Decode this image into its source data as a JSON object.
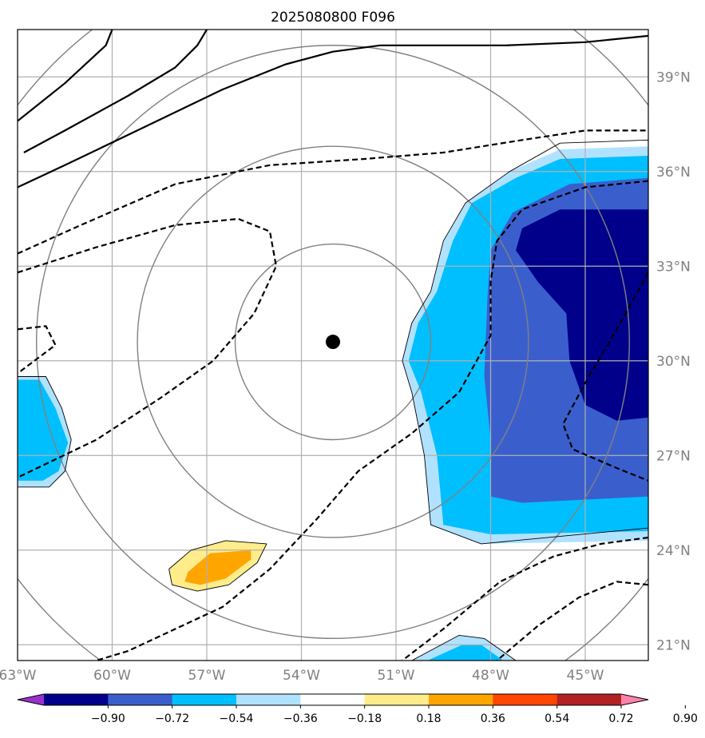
{
  "chart_data": {
    "type": "map",
    "title": "2025080800 F096",
    "map": {
      "lon_range": [
        -63.0,
        -43.0
      ],
      "lat_range": [
        20.5,
        40.5
      ],
      "lon_ticks": [
        -63,
        -60,
        -57,
        -54,
        -51,
        -48,
        -45
      ],
      "lon_tick_labels": [
        "63°W",
        "60°W",
        "57°W",
        "54°W",
        "51°W",
        "48°W",
        "45°W"
      ],
      "lat_ticks": [
        21,
        24,
        27,
        30,
        33,
        36,
        39
      ],
      "lat_tick_labels": [
        "21°N",
        "24°N",
        "27°N",
        "30°N",
        "33°N",
        "36°N",
        "39°N"
      ],
      "grid": true,
      "center": {
        "lon": -53.0,
        "lat": 30.6
      },
      "range_rings_deg": [
        3.1,
        6.2,
        9.4,
        12.5
      ],
      "colors": {
        "grid": "#b0b0b0",
        "rings": "#808080",
        "center_marker": "#000000",
        "contour": "#000000"
      }
    },
    "colorbar": {
      "levels": [
        -0.9,
        -0.72,
        -0.54,
        -0.36,
        -0.18,
        0.18,
        0.36,
        0.54,
        0.72,
        0.9
      ],
      "tick_labels": [
        "−0.90",
        "−0.72",
        "−0.54",
        "−0.36",
        "−0.18",
        "0.18",
        "0.36",
        "0.54",
        "0.72",
        "0.90"
      ],
      "colors": [
        "#9932cc",
        "#00008b",
        "#3a5fcd",
        "#00bfff",
        "#b0e2ff",
        "#ffffff",
        "#ffec8b",
        "#ffa500",
        "#ff4500",
        "#b22222",
        "#ff82ab"
      ],
      "extend": "both"
    },
    "shaded_regions": [
      {
        "name": "east-blob",
        "levels": [
          {
            "value": -0.18,
            "color": "#b0e2ff",
            "points": [
              [
                -45.8,
                36.7
              ],
              [
                -43,
                36.8
              ],
              [
                -43,
                24.3
              ],
              [
                -48.3,
                24.2
              ],
              [
                -49.9,
                24.8
              ],
              [
                -50.1,
                27.0
              ],
              [
                -50.5,
                29.0
              ],
              [
                -50.8,
                30.0
              ],
              [
                -50.5,
                31.2
              ],
              [
                -49.9,
                32.2
              ],
              [
                -49.5,
                33.8
              ],
              [
                -48.8,
                35.0
              ],
              [
                -47.4,
                36.0
              ]
            ]
          },
          {
            "value": -0.36,
            "color": "#00bfff",
            "points": [
              [
                -45.8,
                36.4
              ],
              [
                -43,
                36.5
              ],
              [
                -43,
                24.6
              ],
              [
                -48.0,
                24.5
              ],
              [
                -49.5,
                24.8
              ],
              [
                -49.7,
                27.0
              ],
              [
                -50.2,
                29.0
              ],
              [
                -50.6,
                30.0
              ],
              [
                -50.3,
                31.2
              ],
              [
                -49.7,
                32.2
              ],
              [
                -49.2,
                33.8
              ],
              [
                -48.6,
                35.0
              ],
              [
                -47.2,
                35.8
              ]
            ]
          },
          {
            "value": -0.54,
            "color": "#3a5fcd",
            "points": [
              [
                -45.5,
                35.6
              ],
              [
                -43,
                35.8
              ],
              [
                -43,
                25.7
              ],
              [
                -47.0,
                25.5
              ],
              [
                -48.0,
                25.7
              ],
              [
                -48.0,
                27.5
              ],
              [
                -48.2,
                29.5
              ],
              [
                -48.1,
                32.0
              ],
              [
                -48.0,
                33.5
              ],
              [
                -47.3,
                34.7
              ]
            ]
          },
          {
            "value": -0.72,
            "color": "#00008b",
            "points": [
              [
                -45.8,
                34.8
              ],
              [
                -43,
                34.8
              ],
              [
                -43,
                28.2
              ],
              [
                -44.0,
                28.1
              ],
              [
                -45.0,
                28.6
              ],
              [
                -45.5,
                30.0
              ],
              [
                -45.6,
                31.5
              ],
              [
                -46.5,
                32.5
              ],
              [
                -47.2,
                33.5
              ],
              [
                -47.0,
                34.2
              ]
            ]
          }
        ]
      },
      {
        "name": "west-blob",
        "levels": [
          {
            "value": -0.18,
            "color": "#b0e2ff",
            "points": [
              [
                -63,
                29.5
              ],
              [
                -62.1,
                29.5
              ],
              [
                -61.6,
                28.5
              ],
              [
                -61.3,
                27.5
              ],
              [
                -61.5,
                26.5
              ],
              [
                -62.0,
                26.0
              ],
              [
                -63,
                26.0
              ]
            ]
          },
          {
            "value": -0.36,
            "color": "#00bfff",
            "points": [
              [
                -63,
                29.4
              ],
              [
                -62.3,
                29.4
              ],
              [
                -61.8,
                28.5
              ],
              [
                -61.4,
                27.4
              ],
              [
                -61.7,
                26.5
              ],
              [
                -62.2,
                26.2
              ],
              [
                -63,
                26.2
              ]
            ]
          }
        ]
      },
      {
        "name": "south-blob",
        "levels": [
          {
            "value": -0.18,
            "color": "#b0e2ff",
            "points": [
              [
                -50.5,
                20.5
              ],
              [
                -49.0,
                21.3
              ],
              [
                -48.2,
                21.2
              ],
              [
                -47.2,
                20.5
              ]
            ]
          },
          {
            "value": -0.36,
            "color": "#00bfff",
            "points": [
              [
                -50.0,
                20.5
              ],
              [
                -48.9,
                21.0
              ],
              [
                -48.3,
                21.0
              ],
              [
                -47.6,
                20.5
              ]
            ]
          }
        ]
      },
      {
        "name": "positive-blob",
        "levels": [
          {
            "value": 0.18,
            "color": "#ffec8b",
            "points": [
              [
                -58.2,
                23.4
              ],
              [
                -57.5,
                24.0
              ],
              [
                -56.4,
                24.3
              ],
              [
                -55.1,
                24.2
              ],
              [
                -55.4,
                23.6
              ],
              [
                -56.3,
                22.9
              ],
              [
                -57.3,
                22.7
              ],
              [
                -58.1,
                22.9
              ]
            ]
          },
          {
            "value": 0.36,
            "color": "#ffa500",
            "points": [
              [
                -57.6,
                23.3
              ],
              [
                -56.9,
                23.9
              ],
              [
                -55.6,
                24.0
              ],
              [
                -55.6,
                23.7
              ],
              [
                -56.4,
                23.1
              ],
              [
                -57.2,
                22.9
              ],
              [
                -57.7,
                23.0
              ]
            ]
          }
        ]
      }
    ],
    "contours": [
      {
        "style": "solid",
        "points": [
          [
            -63,
            35.5
          ],
          [
            -61.5,
            36.2
          ],
          [
            -59,
            37.4
          ],
          [
            -56.5,
            38.6
          ],
          [
            -54.5,
            39.4
          ],
          [
            -53,
            39.8
          ],
          [
            -51.5,
            40.0
          ],
          [
            -49.5,
            40.0
          ],
          [
            -47.5,
            40.0
          ],
          [
            -45,
            40.1
          ],
          [
            -43,
            40.3
          ]
        ]
      },
      {
        "style": "solid",
        "points": [
          [
            -63,
            37.6
          ],
          [
            -61.5,
            38.8
          ],
          [
            -60.2,
            40.0
          ],
          [
            -60.0,
            40.5
          ]
        ]
      },
      {
        "style": "solid",
        "points": [
          [
            -62.8,
            36.6
          ],
          [
            -61.5,
            37.3
          ],
          [
            -59.5,
            38.4
          ],
          [
            -58,
            39.3
          ],
          [
            -57.3,
            40.0
          ],
          [
            -57.0,
            40.5
          ]
        ]
      },
      {
        "style": "dashed",
        "points": [
          [
            -63,
            33.4
          ],
          [
            -61,
            34.3
          ],
          [
            -58,
            35.6
          ],
          [
            -55,
            36.2
          ],
          [
            -52,
            36.4
          ],
          [
            -49.5,
            36.6
          ],
          [
            -47,
            37.0
          ],
          [
            -45,
            37.3
          ],
          [
            -43,
            37.3
          ]
        ]
      },
      {
        "style": "dashed",
        "points": [
          [
            -63,
            32.8
          ],
          [
            -60.5,
            33.6
          ],
          [
            -58,
            34.3
          ],
          [
            -56,
            34.5
          ],
          [
            -55,
            34.1
          ],
          [
            -54.8,
            33.0
          ],
          [
            -55.5,
            31.5
          ],
          [
            -56.8,
            30.0
          ],
          [
            -58.5,
            28.8
          ],
          [
            -60.5,
            27.5
          ],
          [
            -63,
            26.3
          ]
        ]
      },
      {
        "style": "dashed",
        "points": [
          [
            -63,
            31.0
          ],
          [
            -62.1,
            31.1
          ],
          [
            -61.8,
            30.5
          ],
          [
            -63,
            29.6
          ]
        ]
      },
      {
        "style": "dashed",
        "points": [
          [
            -43,
            35.7
          ],
          [
            -45,
            35.5
          ],
          [
            -47,
            34.8
          ],
          [
            -47.8,
            33.8
          ],
          [
            -48.0,
            32.5
          ],
          [
            -48.0,
            30.8
          ],
          [
            -49.0,
            29.0
          ],
          [
            -50.5,
            27.7
          ],
          [
            -52.2,
            26.5
          ],
          [
            -53.5,
            25.0
          ],
          [
            -55.0,
            23.4
          ],
          [
            -56.5,
            22.2
          ],
          [
            -58.0,
            21.5
          ],
          [
            -59.5,
            20.8
          ],
          [
            -60.5,
            20.5
          ]
        ]
      },
      {
        "style": "dashed",
        "points": [
          [
            -43,
            32.8
          ],
          [
            -44,
            31.0
          ],
          [
            -45.0,
            29.3
          ],
          [
            -45.7,
            28.0
          ],
          [
            -45.4,
            27.2
          ],
          [
            -44.0,
            26.6
          ],
          [
            -43,
            26.2
          ]
        ]
      },
      {
        "style": "dashed",
        "points": [
          [
            -43,
            24.4
          ],
          [
            -44.5,
            24.2
          ],
          [
            -46.0,
            23.8
          ],
          [
            -47.7,
            23.0
          ],
          [
            -49.5,
            21.5
          ],
          [
            -50.8,
            20.5
          ]
        ]
      },
      {
        "style": "dashed",
        "points": [
          [
            -43,
            22.9
          ],
          [
            -44.0,
            23.0
          ],
          [
            -45.2,
            22.5
          ],
          [
            -46.5,
            21.6
          ],
          [
            -47.8,
            20.5
          ]
        ]
      },
      {
        "style": "thin",
        "points": [
          [
            -63,
            29.5
          ],
          [
            -62.1,
            29.5
          ],
          [
            -61.6,
            28.5
          ],
          [
            -61.3,
            27.5
          ],
          [
            -61.5,
            26.5
          ],
          [
            -62.0,
            26.0
          ],
          [
            -63,
            26.0
          ]
        ]
      },
      {
        "style": "thin",
        "points": [
          [
            -45.8,
            36.9
          ],
          [
            -43,
            37.0
          ],
          [
            -43,
            24.7
          ],
          [
            -48.3,
            24.2
          ],
          [
            -49.9,
            24.8
          ],
          [
            -50.1,
            27.0
          ],
          [
            -50.5,
            29.0
          ],
          [
            -50.8,
            30.0
          ],
          [
            -50.5,
            31.2
          ],
          [
            -49.9,
            32.2
          ],
          [
            -49.5,
            33.8
          ],
          [
            -48.8,
            35.0
          ],
          [
            -47.4,
            36.0
          ],
          [
            -45.8,
            36.9
          ]
        ]
      },
      {
        "style": "thin",
        "points": [
          [
            -50.5,
            20.5
          ],
          [
            -49.0,
            21.3
          ],
          [
            -48.2,
            21.2
          ],
          [
            -47.2,
            20.5
          ]
        ]
      },
      {
        "style": "thin",
        "points": [
          [
            -58.2,
            23.4
          ],
          [
            -57.5,
            24.0
          ],
          [
            -56.4,
            24.3
          ],
          [
            -55.1,
            24.2
          ],
          [
            -55.4,
            23.6
          ],
          [
            -56.3,
            22.9
          ],
          [
            -57.3,
            22.7
          ],
          [
            -58.1,
            22.9
          ],
          [
            -58.2,
            23.4
          ]
        ]
      }
    ]
  }
}
